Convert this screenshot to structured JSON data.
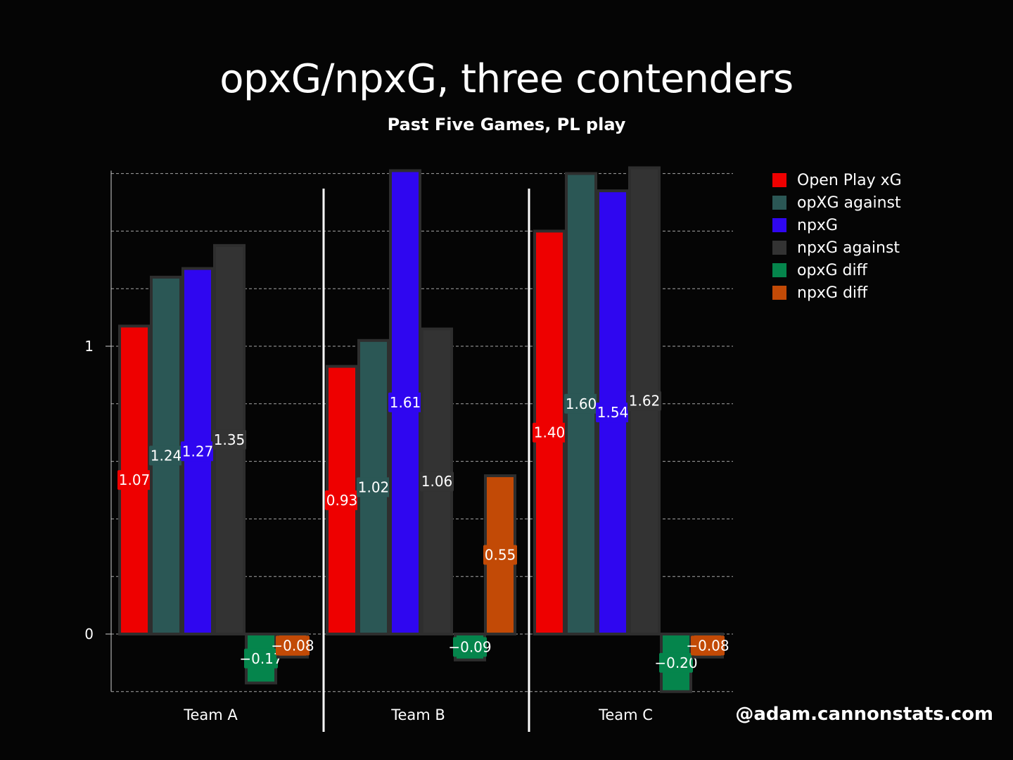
{
  "title": "opxG/npxG, three contenders",
  "subtitle": "Past Five Games, PL play",
  "credit": "@adam.cannonstats.com",
  "chart_data": {
    "type": "bar",
    "categories": [
      "Team A",
      "Team B",
      "Team C"
    ],
    "series": [
      {
        "name": "Open Play xG",
        "color": "#ee0000",
        "values": [
          1.07,
          0.93,
          1.4
        ],
        "labels": [
          "1.07",
          "0.93",
          "1.40"
        ]
      },
      {
        "name": "opXG against",
        "color": "#2b5755",
        "values": [
          1.24,
          1.02,
          1.6
        ],
        "labels": [
          "1.24",
          "1.02",
          "1.60"
        ]
      },
      {
        "name": "npxG",
        "color": "#2f06f0",
        "values": [
          1.27,
          1.61,
          1.54
        ],
        "labels": [
          "1.27",
          "1.61",
          "1.54"
        ]
      },
      {
        "name": "npxG against",
        "color": "#333333",
        "values": [
          1.35,
          1.06,
          1.62
        ],
        "labels": [
          "1.35",
          "1.06",
          "1.62"
        ]
      },
      {
        "name": "opxG diff",
        "color": "#05854c",
        "values": [
          -0.17,
          null,
          -0.2
        ],
        "labels": [
          "−0.17",
          "",
          "−0.20"
        ]
      },
      {
        "name": "npxG diff",
        "color": "#c24a06",
        "values": [
          -0.08,
          0.55,
          -0.08
        ],
        "labels": [
          "−0.08",
          "0.55",
          "−0.08"
        ]
      }
    ],
    "extra_marks": [
      {
        "category": "Team B",
        "value": -0.09,
        "label": "−0.09",
        "color": "#05854c"
      }
    ],
    "yticks": [
      {
        "value": 0,
        "label": "0"
      },
      {
        "value": 1,
        "label": "1"
      }
    ],
    "ylim": [
      -0.2,
      1.6
    ],
    "grid": true,
    "legend_position": "right",
    "xlabel": "",
    "ylabel": ""
  }
}
